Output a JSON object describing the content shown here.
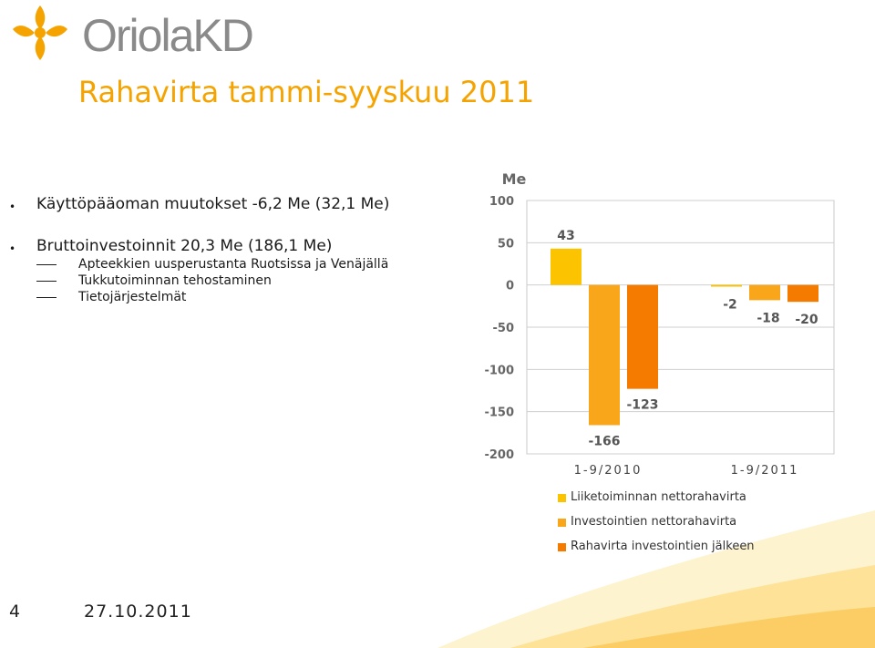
{
  "logo": {
    "text": "OriolaKD",
    "icon": "oriola-star-logo-icon",
    "text_color": "#8a8a8a",
    "icon_color": "#f5a300"
  },
  "slide": {
    "title": "Rahavirta tammi-syyskuu 2011",
    "title_color": "#f5a300"
  },
  "bullets": [
    {
      "text": "Käyttöpääoman muutokset -6,2 Me (32,1 Me)"
    },
    {
      "text": "Bruttoinvestoinnit 20,3 Me (186,1 Me)",
      "sub": [
        "Apteekkien uusperustanta Ruotsissa ja Venäjällä",
        "Tukkutoiminnan tehostaminen",
        "Tietojärjestelmät"
      ]
    }
  ],
  "footer": {
    "page": "4",
    "date": "27.10.2011"
  },
  "chart_data": {
    "type": "bar",
    "ylabel": "Me",
    "ylim": [
      -200,
      100
    ],
    "yticks": [
      100,
      50,
      0,
      -50,
      -100,
      -150,
      -200
    ],
    "grid": true,
    "legend_position": "bottom",
    "categories": [
      "1-9/2010",
      "1-9/2011"
    ],
    "series": [
      {
        "name": "Liiketoiminnan nettorahavirta",
        "color": "#fcc400",
        "values": [
          43,
          -2
        ]
      },
      {
        "name": "Investointien nettorahavirta",
        "color": "#f9a61a",
        "values": [
          -166,
          -18
        ]
      },
      {
        "name": "Rahavirta investointien jälkeen",
        "color": "#f47a00",
        "values": [
          -123,
          -20
        ]
      }
    ]
  }
}
